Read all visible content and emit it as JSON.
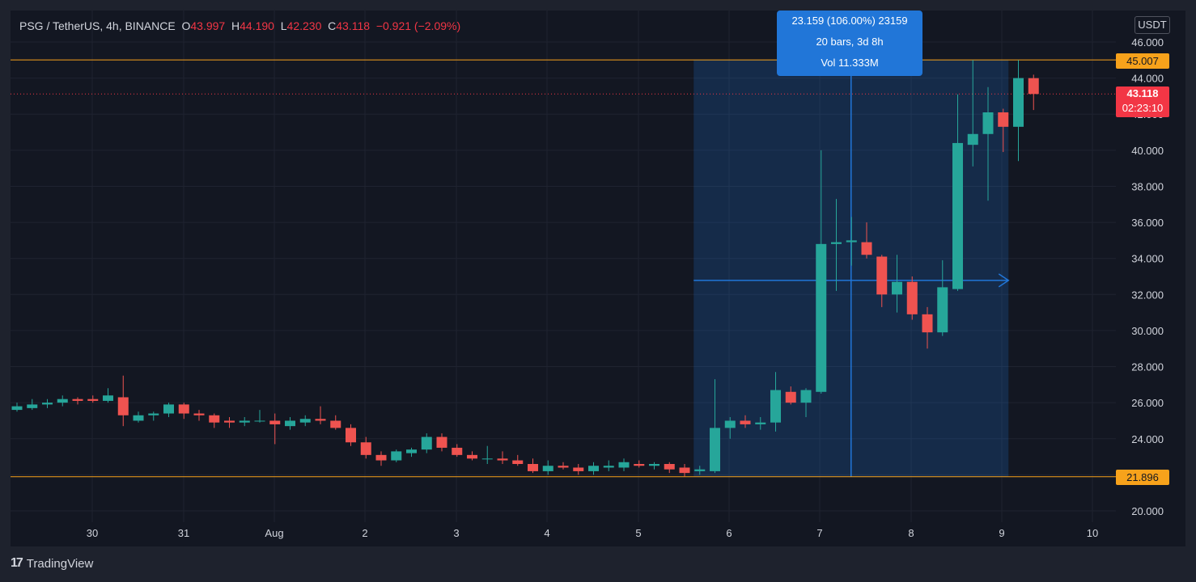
{
  "header": {
    "symbol": "PSG / TetherUS, 4h, BINANCE",
    "o_label": "O",
    "o_value": "43.997",
    "h_label": "H",
    "h_value": "44.190",
    "l_label": "L",
    "l_value": "42.230",
    "c_label": "C",
    "c_value": "43.118",
    "change": "−0.921 (−2.09%)"
  },
  "currency_button": "USDT",
  "brand": "TradingView",
  "measure_box": {
    "line1": "23.159 (106.00%) 23159",
    "line2": "20 bars, 3d 8h",
    "line3": "Vol 11.333M"
  },
  "price_labels": {
    "upper_line": "45.007",
    "lower_line": "21.896",
    "last_price": "43.118",
    "countdown": "02:23:10"
  },
  "colors": {
    "up": "#26a69a",
    "down": "#ef5350",
    "horizontal_line": "#f7a21b",
    "measure": "#2176d8",
    "last_price": "#f23645"
  },
  "chart_data": {
    "type": "candlestick",
    "ylim": [
      19.5,
      46.8
    ],
    "y_ticks": [
      "20.000",
      "22.000",
      "24.000",
      "26.000",
      "28.000",
      "30.000",
      "32.000",
      "34.000",
      "36.000",
      "38.000",
      "40.000",
      "42.000",
      "44.000",
      "46.000"
    ],
    "x_ticks": [
      "30",
      "31",
      "Aug",
      "2",
      "3",
      "4",
      "5",
      "6",
      "7",
      "8",
      "9",
      "10"
    ],
    "horizontal_lines": [
      45.007,
      21.896
    ],
    "last_price": 43.118,
    "measure_range": {
      "from_bar": 45,
      "to_bar": 65,
      "low": 21.896,
      "high": 45.007
    },
    "candles": [
      {
        "o": 25.6,
        "h": 26.0,
        "l": 25.5,
        "c": 25.8
      },
      {
        "o": 25.7,
        "h": 26.2,
        "l": 25.6,
        "c": 25.9
      },
      {
        "o": 25.9,
        "h": 26.2,
        "l": 25.7,
        "c": 26.0
      },
      {
        "o": 26.0,
        "h": 26.4,
        "l": 25.8,
        "c": 26.2
      },
      {
        "o": 26.2,
        "h": 26.3,
        "l": 25.9,
        "c": 26.1
      },
      {
        "o": 26.2,
        "h": 26.4,
        "l": 26.0,
        "c": 26.1
      },
      {
        "o": 26.1,
        "h": 26.8,
        "l": 26.0,
        "c": 26.4
      },
      {
        "o": 26.3,
        "h": 27.5,
        "l": 24.7,
        "c": 25.3
      },
      {
        "o": 25.0,
        "h": 25.5,
        "l": 24.9,
        "c": 25.3
      },
      {
        "o": 25.3,
        "h": 25.5,
        "l": 25.0,
        "c": 25.4
      },
      {
        "o": 25.4,
        "h": 26.0,
        "l": 25.2,
        "c": 25.9
      },
      {
        "o": 25.9,
        "h": 26.0,
        "l": 25.1,
        "c": 25.4
      },
      {
        "o": 25.4,
        "h": 25.6,
        "l": 25.0,
        "c": 25.3
      },
      {
        "o": 25.3,
        "h": 25.4,
        "l": 24.6,
        "c": 24.9
      },
      {
        "o": 25.0,
        "h": 25.2,
        "l": 24.6,
        "c": 24.9
      },
      {
        "o": 24.9,
        "h": 25.2,
        "l": 24.7,
        "c": 25.0
      },
      {
        "o": 25.0,
        "h": 25.6,
        "l": 24.9,
        "c": 25.0
      },
      {
        "o": 25.0,
        "h": 25.4,
        "l": 23.7,
        "c": 24.8
      },
      {
        "o": 24.7,
        "h": 25.2,
        "l": 24.5,
        "c": 25.0
      },
      {
        "o": 24.9,
        "h": 25.3,
        "l": 24.7,
        "c": 25.1
      },
      {
        "o": 25.1,
        "h": 25.8,
        "l": 24.8,
        "c": 25.0
      },
      {
        "o": 25.0,
        "h": 25.3,
        "l": 24.5,
        "c": 24.6
      },
      {
        "o": 24.6,
        "h": 24.8,
        "l": 23.6,
        "c": 23.8
      },
      {
        "o": 23.8,
        "h": 24.1,
        "l": 22.9,
        "c": 23.1
      },
      {
        "o": 23.1,
        "h": 23.3,
        "l": 22.5,
        "c": 22.8
      },
      {
        "o": 22.8,
        "h": 23.4,
        "l": 22.7,
        "c": 23.3
      },
      {
        "o": 23.2,
        "h": 23.5,
        "l": 23.0,
        "c": 23.4
      },
      {
        "o": 23.4,
        "h": 24.3,
        "l": 23.2,
        "c": 24.1
      },
      {
        "o": 24.1,
        "h": 24.3,
        "l": 23.3,
        "c": 23.5
      },
      {
        "o": 23.5,
        "h": 23.7,
        "l": 23.0,
        "c": 23.1
      },
      {
        "o": 23.1,
        "h": 23.3,
        "l": 22.8,
        "c": 22.9
      },
      {
        "o": 22.9,
        "h": 23.6,
        "l": 22.6,
        "c": 22.9
      },
      {
        "o": 22.9,
        "h": 23.3,
        "l": 22.6,
        "c": 22.8
      },
      {
        "o": 22.8,
        "h": 23.1,
        "l": 22.5,
        "c": 22.6
      },
      {
        "o": 22.6,
        "h": 22.9,
        "l": 22.1,
        "c": 22.2
      },
      {
        "o": 22.2,
        "h": 22.8,
        "l": 22.0,
        "c": 22.5
      },
      {
        "o": 22.5,
        "h": 22.7,
        "l": 22.3,
        "c": 22.4
      },
      {
        "o": 22.4,
        "h": 22.6,
        "l": 22.0,
        "c": 22.2
      },
      {
        "o": 22.2,
        "h": 22.7,
        "l": 22.0,
        "c": 22.5
      },
      {
        "o": 22.4,
        "h": 22.8,
        "l": 22.2,
        "c": 22.5
      },
      {
        "o": 22.4,
        "h": 22.9,
        "l": 22.2,
        "c": 22.7
      },
      {
        "o": 22.6,
        "h": 22.8,
        "l": 22.4,
        "c": 22.5
      },
      {
        "o": 22.5,
        "h": 22.7,
        "l": 22.3,
        "c": 22.6
      },
      {
        "o": 22.6,
        "h": 22.7,
        "l": 22.1,
        "c": 22.3
      },
      {
        "o": 22.4,
        "h": 22.6,
        "l": 21.9,
        "c": 22.1
      },
      {
        "o": 22.2,
        "h": 22.5,
        "l": 22.0,
        "c": 22.3
      },
      {
        "o": 22.2,
        "h": 27.3,
        "l": 22.1,
        "c": 24.6
      },
      {
        "o": 24.6,
        "h": 25.2,
        "l": 24.0,
        "c": 25.0
      },
      {
        "o": 25.0,
        "h": 25.3,
        "l": 24.6,
        "c": 24.8
      },
      {
        "o": 24.8,
        "h": 25.2,
        "l": 24.5,
        "c": 24.9
      },
      {
        "o": 24.9,
        "h": 27.7,
        "l": 24.4,
        "c": 26.7
      },
      {
        "o": 26.6,
        "h": 26.9,
        "l": 25.9,
        "c": 26.0
      },
      {
        "o": 26.0,
        "h": 26.8,
        "l": 25.2,
        "c": 26.7
      },
      {
        "o": 26.6,
        "h": 40.0,
        "l": 26.5,
        "c": 34.8
      },
      {
        "o": 34.8,
        "h": 37.3,
        "l": 32.2,
        "c": 34.9
      },
      {
        "o": 34.9,
        "h": 36.3,
        "l": 33.6,
        "c": 35.0
      },
      {
        "o": 34.9,
        "h": 36.0,
        "l": 34.0,
        "c": 34.2
      },
      {
        "o": 34.1,
        "h": 34.2,
        "l": 31.3,
        "c": 32.0
      },
      {
        "o": 32.0,
        "h": 34.2,
        "l": 31.0,
        "c": 32.7
      },
      {
        "o": 32.7,
        "h": 33.0,
        "l": 30.6,
        "c": 30.9
      },
      {
        "o": 30.9,
        "h": 31.3,
        "l": 29.0,
        "c": 29.9
      },
      {
        "o": 29.9,
        "h": 33.9,
        "l": 29.7,
        "c": 32.4
      },
      {
        "o": 32.3,
        "h": 43.1,
        "l": 32.2,
        "c": 40.4
      },
      {
        "o": 40.3,
        "h": 45.0,
        "l": 39.1,
        "c": 40.9
      },
      {
        "o": 40.9,
        "h": 43.5,
        "l": 37.2,
        "c": 42.1
      },
      {
        "o": 42.1,
        "h": 42.3,
        "l": 39.9,
        "c": 41.3
      },
      {
        "o": 41.3,
        "h": 45.0,
        "l": 39.4,
        "c": 44.0
      },
      {
        "o": 43.997,
        "h": 44.19,
        "l": 42.23,
        "c": 43.118
      }
    ]
  }
}
